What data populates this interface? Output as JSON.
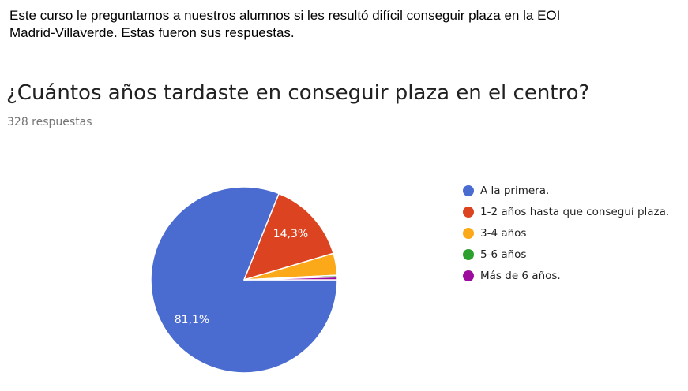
{
  "intro": {
    "line1": "Este curso le preguntamos a nuestros alumnos si les resultó difícil conseguir plaza en la EOI",
    "line2": "Madrid-Villaverde. Estas fueron sus respuestas."
  },
  "question": {
    "title": "¿Cuántos años tardaste en conseguir plaza en el centro?",
    "count": "328 respuestas"
  },
  "chart_data": {
    "type": "pie",
    "title": "",
    "total": 328,
    "slices": [
      {
        "label": "A la primera.",
        "value": 81.1,
        "color": "#4a6bd0",
        "data_label": "81,1%"
      },
      {
        "label": "1-2 años hasta que conseguí plaza.",
        "value": 14.3,
        "color": "#dc4421",
        "data_label": "14,3%"
      },
      {
        "label": "3-4 años",
        "value": 3.8,
        "color": "#fba819",
        "data_label": ""
      },
      {
        "label": "5-6 años",
        "value": 0.3,
        "color": "#2ca02c",
        "data_label": ""
      },
      {
        "label": "Más de 6 años.",
        "value": 0.5,
        "color": "#9c0d9e",
        "data_label": ""
      }
    ],
    "legend_position": "right"
  }
}
